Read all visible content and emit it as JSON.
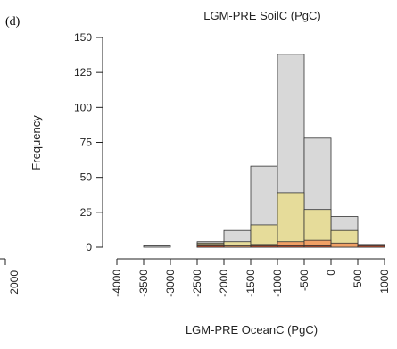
{
  "panel_label": "(d)",
  "stray_tick_label": "2000",
  "chart_data": {
    "type": "bar",
    "title": "LGM-PRE SoilC (PgC)",
    "xlabel": "LGM-PRE OceanC (PgC)",
    "ylabel": "Frequency",
    "xlim": [
      -4000,
      1000
    ],
    "ylim": [
      0,
      150
    ],
    "x_ticks": [
      -4000,
      -3500,
      -3000,
      -2500,
      -2000,
      -1500,
      -1000,
      -500,
      0,
      500,
      1000
    ],
    "x_tick_labels": [
      "-4000",
      "-3500",
      "-3000",
      "-2500",
      "-2000",
      "-1500",
      "-1000",
      "-500",
      "0",
      "500",
      "1000"
    ],
    "y_ticks": [
      0,
      25,
      50,
      75,
      100,
      125,
      150
    ],
    "y_tick_labels": [
      "0",
      "25",
      "50",
      "75",
      "100",
      "125",
      "150"
    ],
    "bin_edges": [
      -3500,
      -3000,
      -2500,
      -2000,
      -1500,
      -1000,
      -500,
      0,
      500,
      1000
    ],
    "series": [
      {
        "color": "#d8d8d8",
        "values": [
          1,
          0,
          4,
          12,
          58,
          138,
          78,
          22,
          1
        ]
      },
      {
        "color": "#e6dc9a",
        "values": [
          0,
          0,
          3,
          4,
          16,
          39,
          27,
          12,
          1
        ]
      },
      {
        "color": "#f0a066",
        "values": [
          0,
          0,
          2,
          1,
          2,
          4,
          5,
          3,
          2
        ]
      },
      {
        "color": "#d8502a",
        "values": [
          0,
          0,
          1,
          0,
          1,
          1,
          1,
          0,
          1
        ]
      }
    ],
    "grid": false,
    "legend": "none"
  }
}
